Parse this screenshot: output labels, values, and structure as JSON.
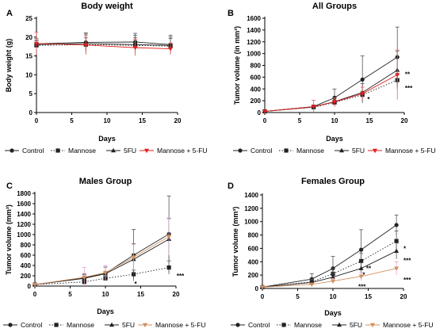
{
  "chart_data": [
    {
      "panel": "A",
      "type": "line",
      "title": "Body weight",
      "xlabel": "Days",
      "ylabel": "Body weight (g)",
      "xlim": [
        0,
        20
      ],
      "ylim": [
        0,
        25
      ],
      "xticks": [
        0,
        5,
        10,
        15,
        20
      ],
      "yticks": [
        0,
        5,
        10,
        15,
        20,
        25
      ],
      "grid": false,
      "legend": "bottom",
      "series": [
        {
          "name": "Control",
          "marker": "circle",
          "dash": "solid",
          "color": "#222222",
          "x": [
            0,
            7,
            14,
            19
          ],
          "y": [
            18.2,
            18.6,
            18.7,
            18.0
          ],
          "err": [
            1.5,
            2.2,
            2.3,
            2.5
          ],
          "err_color": "#555555"
        },
        {
          "name": "Mannose",
          "marker": "square",
          "dash": "dotted",
          "color": "#222222",
          "x": [
            0,
            7,
            14,
            19
          ],
          "y": [
            17.8,
            18.0,
            17.8,
            17.6
          ],
          "err": [
            1.2,
            1.8,
            2.0,
            2.0
          ],
          "err_color": "#555555"
        },
        {
          "name": "5FU",
          "marker": "triangle",
          "dash": "solid",
          "color": "#222222",
          "x": [
            0,
            7,
            14,
            19
          ],
          "y": [
            18.0,
            18.3,
            18.0,
            17.8
          ],
          "err": [
            1.3,
            2.8,
            2.5,
            2.2
          ],
          "err_color": "#555555"
        },
        {
          "name": "Mannose + 5-FU",
          "marker": "triangle-down",
          "dash": "solid",
          "color": "#e02020",
          "x": [
            0,
            7,
            14,
            19
          ],
          "y": [
            18.3,
            17.9,
            17.2,
            16.9
          ],
          "err": [
            3.0,
            2.5,
            2.2,
            1.5
          ],
          "err_color": "#e86060"
        }
      ],
      "annotations": []
    },
    {
      "panel": "B",
      "type": "line",
      "title": "All Groups",
      "xlabel": "Days",
      "ylabel": "Tumor volume (in  mm³)",
      "xlim": [
        0,
        20
      ],
      "ylim": [
        0,
        1600
      ],
      "xticks": [
        0,
        5,
        10,
        15,
        20
      ],
      "yticks": [
        0,
        200,
        400,
        600,
        800,
        1000,
        1200,
        1400,
        1600
      ],
      "grid": false,
      "legend": "bottom",
      "series": [
        {
          "name": "Control",
          "marker": "circle",
          "dash": "solid",
          "color": "#222222",
          "x": [
            0,
            7,
            10,
            14,
            19
          ],
          "y": [
            20,
            100,
            250,
            560,
            940
          ],
          "err": [
            5,
            30,
            150,
            400,
            510
          ],
          "err_color": "#555555"
        },
        {
          "name": "Mannose",
          "marker": "square",
          "dash": "dotted",
          "color": "#222222",
          "x": [
            0,
            7,
            10,
            14,
            19
          ],
          "y": [
            20,
            90,
            170,
            300,
            550
          ],
          "err": [
            5,
            20,
            40,
            60,
            90
          ],
          "err_color": "#555555"
        },
        {
          "name": "5FU",
          "marker": "triangle",
          "dash": "solid",
          "color": "#222222",
          "x": [
            0,
            7,
            10,
            14,
            19
          ],
          "y": [
            20,
            95,
            185,
            340,
            720
          ],
          "err": [
            5,
            25,
            60,
            150,
            320
          ],
          "err_color": "#555555"
        },
        {
          "name": "Mannose + 5-FU",
          "marker": "triangle-down",
          "dash": "solid",
          "color": "#e02020",
          "x": [
            0,
            7,
            10,
            14,
            19
          ],
          "y": [
            20,
            100,
            180,
            320,
            640
          ],
          "err": [
            5,
            110,
            70,
            110,
            420
          ],
          "err_color": "#e86060"
        }
      ],
      "annotations": [
        {
          "text": "*",
          "x": 14.7,
          "y": 230
        },
        {
          "text": "**",
          "x": 20.1,
          "y": 650
        },
        {
          "text": "***",
          "x": 20.1,
          "y": 420
        }
      ]
    },
    {
      "panel": "C",
      "type": "line",
      "title": "Males Group",
      "xlabel": "Days",
      "ylabel": "Tumor volume (mm³)",
      "xlim": [
        0,
        20
      ],
      "ylim": [
        0,
        1800
      ],
      "xticks": [
        0,
        5,
        10,
        15,
        20
      ],
      "yticks": [
        0,
        200,
        400,
        600,
        800,
        1000,
        1200,
        1400,
        1600,
        1800
      ],
      "grid": false,
      "legend": "bottom",
      "series": [
        {
          "name": "Control",
          "marker": "circle",
          "dash": "solid",
          "color": "#222222",
          "x": [
            0,
            7,
            10,
            14,
            19
          ],
          "y": [
            30,
            160,
            250,
            600,
            1010
          ],
          "err": [
            10,
            80,
            120,
            500,
            740
          ],
          "err_color": "#555555"
        },
        {
          "name": "Mannose",
          "marker": "square",
          "dash": "dotted",
          "color": "#222222",
          "x": [
            0,
            7,
            10,
            14,
            19
          ],
          "y": [
            30,
            80,
            150,
            230,
            360
          ],
          "err": [
            10,
            20,
            40,
            80,
            130
          ],
          "err_color": "#555555"
        },
        {
          "name": "5FU",
          "marker": "triangle",
          "dash": "solid",
          "color": "#222222",
          "x": [
            0,
            7,
            10,
            14,
            19
          ],
          "y": [
            30,
            150,
            240,
            520,
            910
          ],
          "err": [
            10,
            70,
            130,
            300,
            400
          ],
          "err_color": "#555555"
        },
        {
          "name": "Mannose + 5-FU",
          "marker": "triangle-down",
          "dash": "solid",
          "color": "#d09060",
          "x": [
            0,
            7,
            10,
            14,
            19
          ],
          "y": [
            30,
            170,
            260,
            560,
            960
          ],
          "err": [
            10,
            190,
            140,
            250,
            360
          ],
          "err_color": "#e0a0d0"
        }
      ],
      "annotations": [
        {
          "text": "*",
          "x": 14.1,
          "y": 50
        },
        {
          "text": "***",
          "x": 20.1,
          "y": 200
        }
      ]
    },
    {
      "panel": "D",
      "type": "line",
      "title": "Females Group",
      "xlabel": "Days",
      "ylabel": "Tumor volume (mm³)",
      "xlim": [
        0,
        20
      ],
      "ylim": [
        0,
        1400
      ],
      "xticks": [
        0,
        5,
        10,
        15,
        20
      ],
      "yticks": [
        0,
        200,
        400,
        600,
        800,
        1000,
        1200,
        1400
      ],
      "grid": false,
      "legend": "bottom",
      "series": [
        {
          "name": "Control",
          "marker": "circle",
          "dash": "solid",
          "color": "#222222",
          "x": [
            0,
            7,
            10,
            14,
            19
          ],
          "y": [
            20,
            140,
            300,
            580,
            950
          ],
          "err": [
            5,
            80,
            180,
            300,
            150
          ],
          "err_color": "#555555"
        },
        {
          "name": "Mannose",
          "marker": "square",
          "dash": "dotted",
          "color": "#222222",
          "x": [
            0,
            7,
            10,
            14,
            19
          ],
          "y": [
            20,
            100,
            220,
            410,
            710
          ],
          "err": [
            5,
            40,
            80,
            120,
            150
          ],
          "err_color": "#555555"
        },
        {
          "name": "5FU",
          "marker": "triangle",
          "dash": "solid",
          "color": "#222222",
          "x": [
            0,
            7,
            10,
            14,
            19
          ],
          "y": [
            20,
            90,
            170,
            300,
            560
          ],
          "err": [
            5,
            30,
            60,
            90,
            120
          ],
          "err_color": "#555555"
        },
        {
          "name": "Mannose + 5-FU",
          "marker": "triangle-down",
          "dash": "solid",
          "color": "#d09060",
          "x": [
            0,
            7,
            10,
            14,
            19
          ],
          "y": [
            20,
            60,
            110,
            180,
            300
          ],
          "err": [
            5,
            20,
            40,
            60,
            100
          ],
          "err_color": "#e0a0d0"
        }
      ],
      "annotations": [
        {
          "text": "**",
          "x": 14.7,
          "y": 300
        },
        {
          "text": "*",
          "x": 14.2,
          "y": 210
        },
        {
          "text": "***",
          "x": 13.6,
          "y": 30
        },
        {
          "text": "*",
          "x": 20.0,
          "y": 600
        },
        {
          "text": "***",
          "x": 20.0,
          "y": 420
        },
        {
          "text": "***",
          "x": 20.0,
          "y": 130
        }
      ]
    }
  ]
}
